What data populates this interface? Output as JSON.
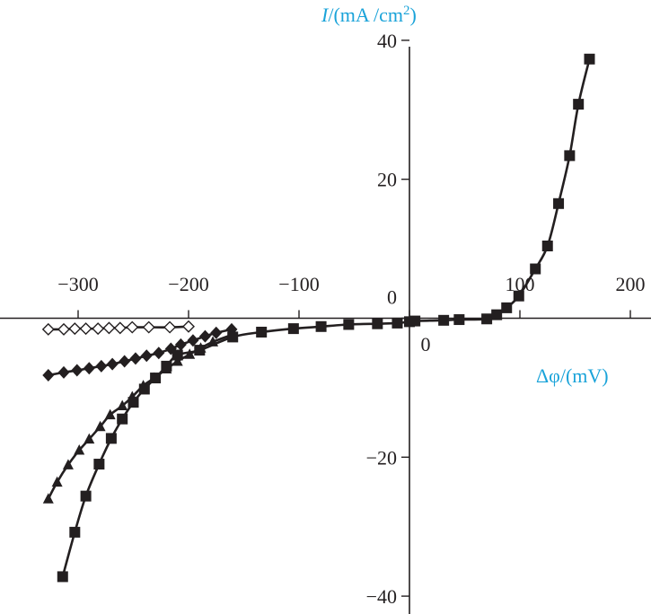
{
  "chart_data": {
    "type": "line",
    "title": "",
    "xlabel": {
      "symbol": "Δφ",
      "unit": "/(mV)"
    },
    "ylabel": {
      "symbol": "I",
      "unit": "/(mA /cm²)",
      "unit_base": "/(mA /cm",
      "unit_sup": "2",
      "unit_close": ")"
    },
    "xlim": [
      -335,
      215
    ],
    "ylim": [
      -42,
      41
    ],
    "x_ticks": [
      -300,
      -200,
      -100,
      0,
      100,
      200
    ],
    "x_tick_labels": [
      "−300",
      "−200",
      "−100",
      "0",
      "100",
      "200"
    ],
    "y_ticks": [
      -40,
      -20,
      0,
      20,
      40
    ],
    "y_tick_labels": [
      "−40",
      "−20",
      "0",
      "20",
      "40"
    ],
    "grid": false,
    "legend": "none",
    "line_color": "#231f20",
    "series": [
      {
        "marker": "diamond-open",
        "x": [
          -327,
          -313,
          -303,
          -293,
          -282,
          -272,
          -262,
          -251,
          -236,
          -217,
          -200
        ],
        "y": [
          -1.6,
          -1.6,
          -1.5,
          -1.5,
          -1.5,
          -1.4,
          -1.4,
          -1.3,
          -1.3,
          -1.3,
          -1.2
        ]
      },
      {
        "marker": "diamond-filled",
        "x": [
          -327,
          -313,
          -301,
          -290,
          -279,
          -269,
          -258,
          -248,
          -238,
          -227,
          -216,
          -207,
          -196,
          -185,
          -175,
          -161
        ],
        "y": [
          -8.2,
          -7.8,
          -7.5,
          -7.2,
          -6.9,
          -6.6,
          -6.2,
          -5.8,
          -5.4,
          -5.0,
          -4.4,
          -3.8,
          -3.2,
          -2.6,
          -2.1,
          -1.6
        ]
      },
      {
        "marker": "triangle-filled",
        "x": [
          -327,
          -319,
          -309,
          -299,
          -290,
          -280,
          -271,
          -260,
          -251,
          -241,
          -231,
          -220,
          -210,
          -199,
          -189,
          -178,
          -161
        ],
        "y": [
          -26.0,
          -23.6,
          -21.1,
          -19.0,
          -17.4,
          -15.6,
          -13.9,
          -12.6,
          -11.3,
          -9.7,
          -8.6,
          -7.3,
          -6.2,
          -5.2,
          -4.3,
          -3.4,
          -2.4
        ]
      },
      {
        "marker": "square-filled",
        "x": [
          -314,
          -303,
          -293,
          -281,
          -270,
          -260,
          -250,
          -240,
          -230,
          -220,
          -210,
          -190,
          -160,
          -134,
          -105,
          -80,
          -55,
          -29,
          -11,
          0,
          5,
          31,
          45,
          70,
          79,
          88,
          99,
          114,
          125,
          135,
          145,
          153,
          163
        ],
        "y": [
          -37.2,
          -30.8,
          -25.6,
          -21.0,
          -17.3,
          -14.5,
          -12.1,
          -10.2,
          -8.6,
          -6.9,
          -5.3,
          -4.6,
          -2.7,
          -2.0,
          -1.5,
          -1.2,
          -0.9,
          -0.8,
          -0.7,
          -0.5,
          -0.4,
          -0.3,
          -0.2,
          -0.1,
          0.5,
          1.5,
          3.2,
          7.1,
          10.4,
          16.5,
          23.4,
          30.8,
          37.3
        ]
      }
    ]
  }
}
